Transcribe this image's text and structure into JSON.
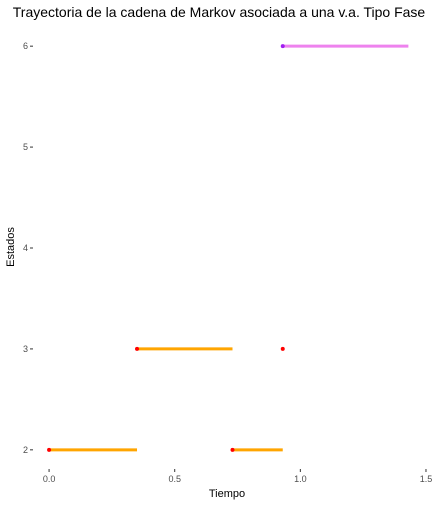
{
  "chart_data": {
    "type": "line",
    "title": "Trayectoria de la cadena de Markov asociada a una v.a. Tipo Fase",
    "xlabel": "Tiempo",
    "ylabel": "Estados",
    "xlim": [
      -0.06,
      1.52
    ],
    "ylim": [
      1.82,
      6.18
    ],
    "x_ticks": [
      0.0,
      0.5,
      1.0,
      1.5
    ],
    "x_tick_labels": [
      "0.0",
      "0.5",
      "1.0",
      "1.5"
    ],
    "y_ticks": [
      2,
      3,
      4,
      5,
      6
    ],
    "y_tick_labels": [
      "2",
      "3",
      "4",
      "5",
      "6"
    ],
    "grid": false,
    "legend": "none",
    "segments": [
      {
        "x_start": 0.0,
        "x_end": 0.35,
        "state": 2,
        "color": "#FFA500"
      },
      {
        "x_start": 0.35,
        "x_end": 0.73,
        "state": 3,
        "color": "#FFA500"
      },
      {
        "x_start": 0.73,
        "x_end": 0.93,
        "state": 2,
        "color": "#FFA500"
      },
      {
        "x_start": 0.93,
        "x_end": 1.43,
        "state": 6,
        "color": "#EE82EE"
      }
    ],
    "points": [
      {
        "x": 0.0,
        "y": 2,
        "color": "#FF0000"
      },
      {
        "x": 0.35,
        "y": 3,
        "color": "#FF0000"
      },
      {
        "x": 0.73,
        "y": 2,
        "color": "#FF0000"
      },
      {
        "x": 0.93,
        "y": 3,
        "color": "#FF0000"
      },
      {
        "x": 0.93,
        "y": 6,
        "color": "#A020F0"
      }
    ]
  }
}
